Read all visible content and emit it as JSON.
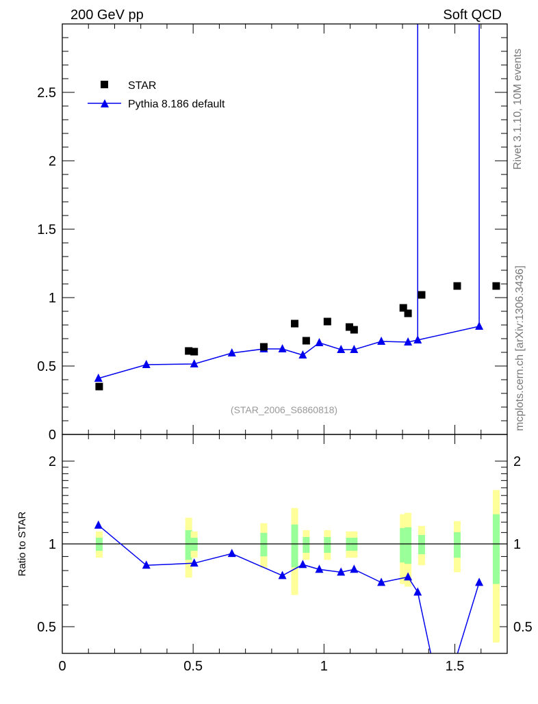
{
  "header": {
    "left": "200 GeV pp",
    "right": "Soft QCD"
  },
  "side": {
    "top": "Rivet 3.1.10,  10M events",
    "bottom": "mcplots.cern.ch [arXiv:1306.3436]"
  },
  "colors": {
    "data": "#000000",
    "mc": "#0000ee",
    "band_stat": "#99ff99",
    "band_total": "#ffff99"
  },
  "chart_data": [
    {
      "type": "scatter",
      "title": "",
      "annotation": "(STAR_2006_S6860818)",
      "xlabel": "",
      "ylabel": "",
      "xlim": [
        0,
        1.7
      ],
      "ylim": [
        0,
        3.0
      ],
      "xticks": [
        "0",
        "0.5",
        "1",
        "1.5"
      ],
      "yticks": [
        "0",
        "0.5",
        "1",
        "1.5",
        "2",
        "2.5"
      ],
      "legend": {
        "position": "top-left",
        "entries": [
          "STAR",
          "Pythia 8.186 default"
        ]
      },
      "series": [
        {
          "name": "STAR",
          "marker": "square",
          "x": [
            0.141,
            0.483,
            0.504,
            0.77,
            0.888,
            0.932,
            1.013,
            1.097,
            1.115,
            1.303,
            1.321,
            1.373,
            1.509,
            1.658
          ],
          "y": [
            0.35,
            0.61,
            0.605,
            0.64,
            0.81,
            0.685,
            0.825,
            0.785,
            0.765,
            0.925,
            0.885,
            1.02,
            1.085,
            1.085
          ]
        },
        {
          "name": "Pythia 8.186 default",
          "marker": "triangle",
          "line": true,
          "x": [
            0.138,
            0.321,
            0.504,
            0.648,
            0.77,
            0.841,
            0.919,
            0.982,
            1.065,
            1.115,
            1.219,
            1.321,
            1.358,
            1.593
          ],
          "y": [
            0.41,
            0.51,
            0.515,
            0.595,
            0.625,
            0.625,
            0.58,
            0.67,
            0.62,
            0.62,
            0.68,
            0.675,
            0.69,
            0.79
          ],
          "yerr_up_to_top": [
            1.358,
            1.593
          ]
        }
      ]
    },
    {
      "type": "line",
      "ylabel": "Ratio to STAR",
      "yscale": "log",
      "xlim": [
        0,
        1.7
      ],
      "ylim": [
        0.4,
        2.5
      ],
      "xticks": [
        "0",
        "0.5",
        "1",
        "1.5"
      ],
      "yticks": [
        "0.5",
        "1",
        "2"
      ],
      "reference_line": 1,
      "bands": {
        "x": [
          0.141,
          0.483,
          0.504,
          0.77,
          0.888,
          0.932,
          1.013,
          1.097,
          1.115,
          1.303,
          1.321,
          1.373,
          1.509,
          1.658
        ],
        "total_lo": [
          0.891,
          0.754,
          0.891,
          0.817,
          0.652,
          0.875,
          0.875,
          0.891,
          0.891,
          0.715,
          0.699,
          0.836,
          0.789,
          0.438
        ],
        "total_hi": [
          1.11,
          1.245,
          1.11,
          1.189,
          1.35,
          1.122,
          1.122,
          1.11,
          1.11,
          1.282,
          1.297,
          1.162,
          1.21,
          1.569
        ],
        "stat_lo": [
          0.944,
          0.875,
          0.944,
          0.901,
          0.822,
          0.928,
          0.928,
          0.944,
          0.944,
          0.856,
          0.846,
          0.917,
          0.891,
          0.715
        ],
        "stat_hi": [
          1.053,
          1.122,
          1.053,
          1.097,
          1.176,
          1.059,
          1.059,
          1.053,
          1.053,
          1.142,
          1.149,
          1.078,
          1.103,
          1.282
        ]
      },
      "series": [
        {
          "name": "Pythia 8.186 default",
          "x": [
            0.138,
            0.321,
            0.504,
            0.648,
            0.841,
            0.919,
            0.982,
            1.065,
            1.115,
            1.219,
            1.321,
            1.358,
            1.45,
            1.593
          ],
          "y": [
            1.169,
            0.836,
            0.851,
            0.922,
            0.767,
            0.841,
            0.808,
            0.789,
            0.808,
            0.724,
            0.758,
            0.668,
            0.26,
            0.724
          ],
          "marker_hidden_index": [
            12
          ]
        }
      ]
    }
  ]
}
